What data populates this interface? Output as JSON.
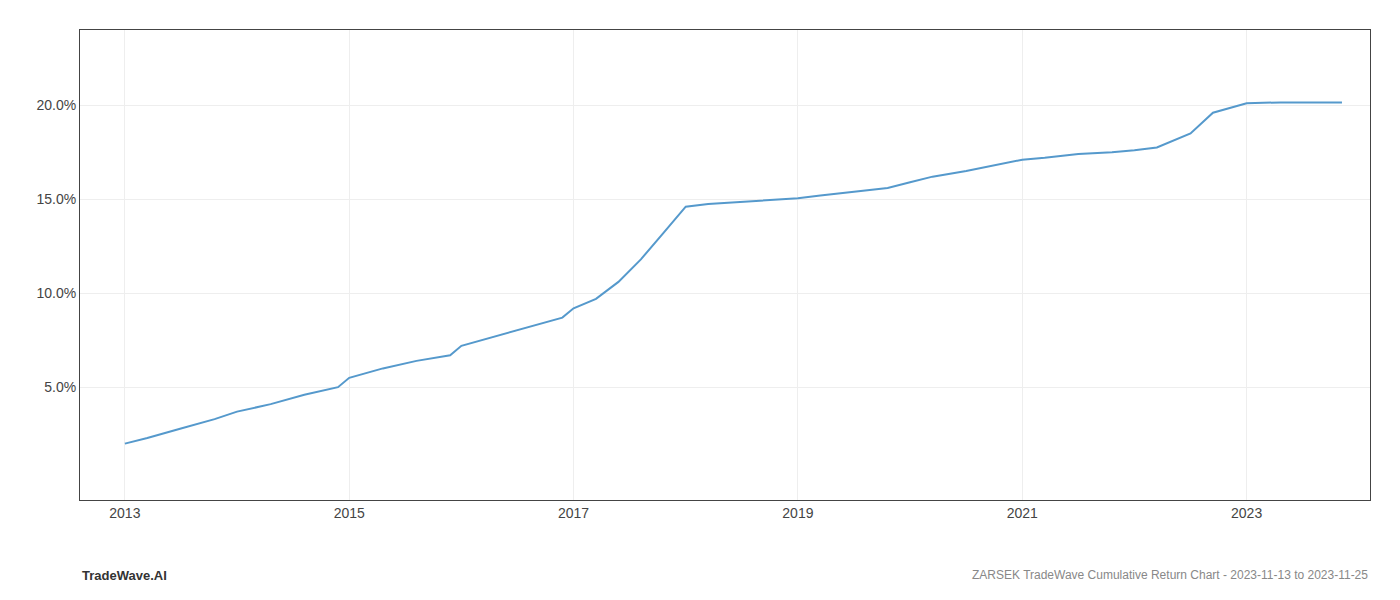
{
  "chart_data": {
    "type": "line",
    "title": "ZARSEK TradeWave Cumulative Return Chart - 2023-11-13 to 2023-11-25",
    "annotations": [
      "TradeWave.AI"
    ],
    "color": "#5599cc",
    "x": [
      2013.0,
      2013.2,
      2013.5,
      2013.8,
      2014.0,
      2014.3,
      2014.6,
      2014.9,
      2015.0,
      2015.3,
      2015.6,
      2015.9,
      2016.0,
      2016.3,
      2016.6,
      2016.9,
      2017.0,
      2017.2,
      2017.4,
      2017.6,
      2017.8,
      2018.0,
      2018.2,
      2018.5,
      2018.8,
      2019.0,
      2019.2,
      2019.5,
      2019.8,
      2020.0,
      2020.2,
      2020.5,
      2020.8,
      2021.0,
      2021.2,
      2021.5,
      2021.8,
      2022.0,
      2022.2,
      2022.5,
      2022.7,
      2023.0,
      2023.3,
      2023.6,
      2023.85
    ],
    "values": [
      2.0,
      2.3,
      2.8,
      3.3,
      3.7,
      4.1,
      4.6,
      5.0,
      5.5,
      6.0,
      6.4,
      6.7,
      7.2,
      7.7,
      8.2,
      8.7,
      9.2,
      9.7,
      10.6,
      11.8,
      13.2,
      14.6,
      14.75,
      14.85,
      14.95,
      15.05,
      15.2,
      15.4,
      15.6,
      15.9,
      16.2,
      16.5,
      16.85,
      17.1,
      17.2,
      17.4,
      17.5,
      17.6,
      17.75,
      18.5,
      19.6,
      20.1,
      20.15,
      20.15,
      20.15
    ],
    "xlim": [
      2012.6,
      2024.1
    ],
    "ylim": [
      -1.0,
      24.0
    ],
    "xticks": [
      2013,
      2015,
      2017,
      2019,
      2021,
      2023
    ],
    "yticks": [
      {
        "value": 5.0,
        "label": "5.0%"
      },
      {
        "value": 10.0,
        "label": "10.0%"
      },
      {
        "value": 15.0,
        "label": "15.0%"
      },
      {
        "value": 20.0,
        "label": "20.0%"
      }
    ],
    "grid": true
  }
}
